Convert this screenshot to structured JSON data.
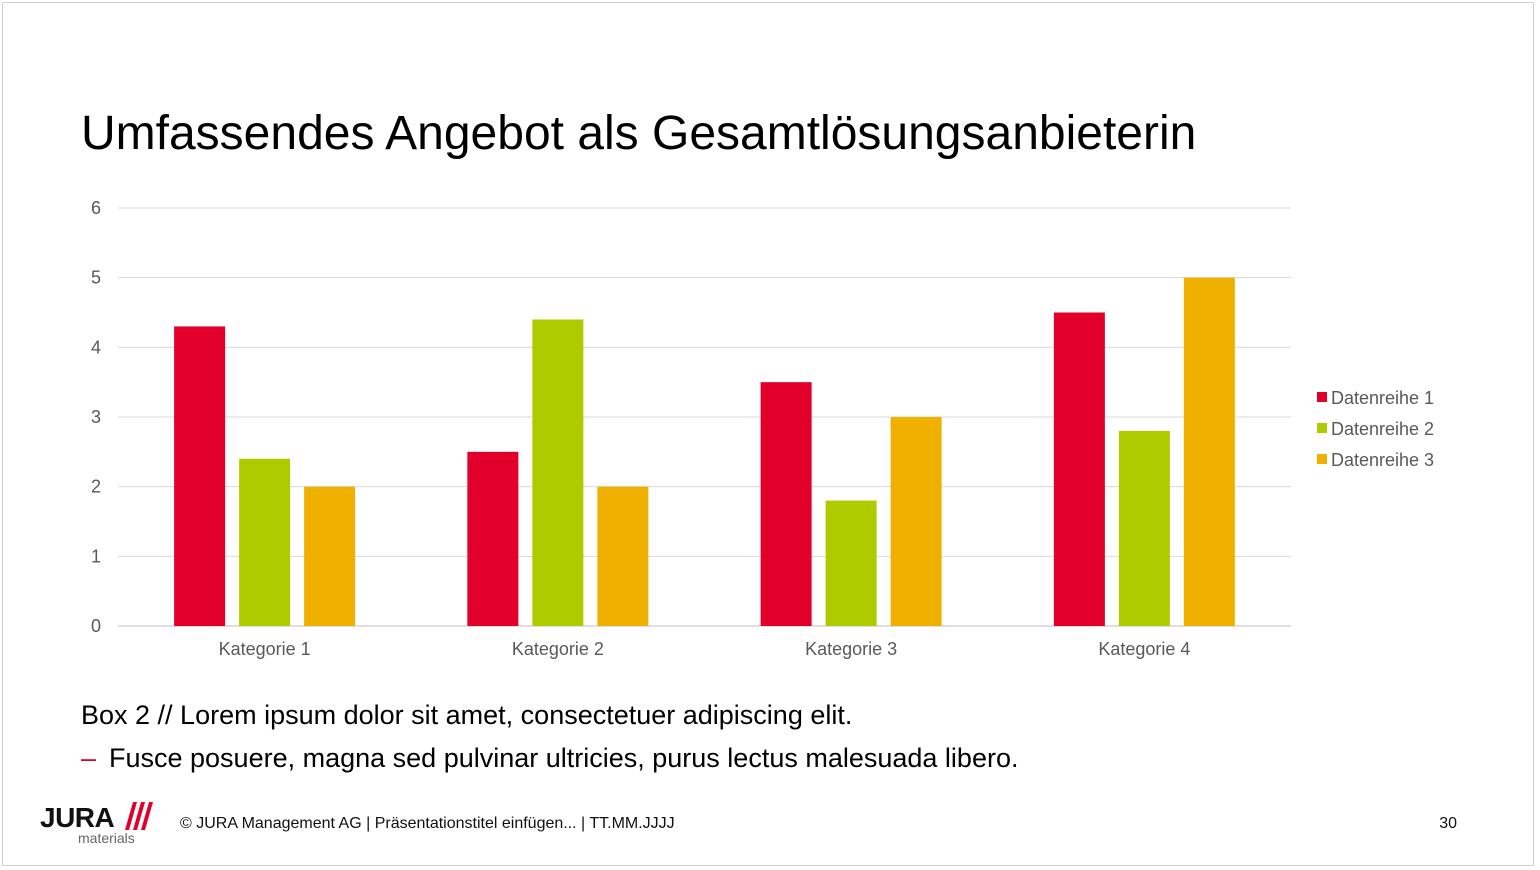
{
  "slide": {
    "title": "Umfassendes Angebot als Gesamtlösungsanbieterin",
    "body_text": "Box 2 // Lorem ipsum dolor sit amet, consectetuer adipiscing elit.",
    "bullet_dash": "–",
    "bullet_text": "Fusce posuere, magna sed pulvinar ultricies, purus lectus malesuada libero.",
    "footer_text": "© JURA Management AG | Präsentationstitel einfügen... | TT.MM.JJJJ",
    "page_number": "30"
  },
  "logo": {
    "wordmark": "JURA",
    "subtitle": "materials",
    "accent_color": "#e2002a"
  },
  "chart_data": {
    "type": "bar",
    "title": "",
    "xlabel": "",
    "ylabel": "",
    "categories": [
      "Kategorie 1",
      "Kategorie 2",
      "Kategorie 3",
      "Kategorie 4"
    ],
    "series": [
      {
        "name": "Datenreihe 1",
        "color": "#e2002a",
        "values": [
          4.3,
          2.5,
          3.5,
          4.5
        ]
      },
      {
        "name": "Datenreihe 2",
        "color": "#aecb00",
        "values": [
          2.4,
          4.4,
          1.8,
          2.8
        ]
      },
      {
        "name": "Datenreihe 3",
        "color": "#f0b000",
        "values": [
          2,
          2,
          3,
          5
        ]
      }
    ],
    "ylim": [
      0,
      6
    ],
    "yticks": [
      "0",
      "1",
      "2",
      "3",
      "4",
      "5",
      "6"
    ],
    "grid": true,
    "legend": "right"
  }
}
